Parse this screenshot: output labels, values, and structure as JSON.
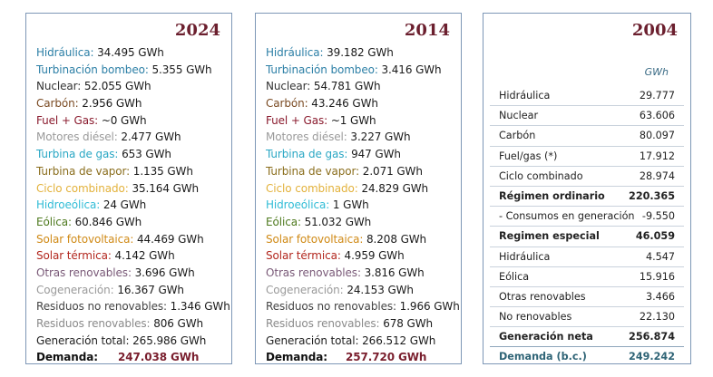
{
  "p2024": {
    "year": "2024",
    "rows": [
      {
        "label": "Hidráulica:",
        "value": " 34.495 GWh",
        "color": "#2c7fa6"
      },
      {
        "label": "Turbinación bombeo:",
        "value": " 5.355 GWh",
        "color": "#2c7fa6"
      },
      {
        "label": "Nuclear:",
        "value": " 52.055 GWh",
        "color": "#333333"
      },
      {
        "label": "Carbón:",
        "value": " 2.956 GWh",
        "color": "#7a4a22"
      },
      {
        "label": "Fuel + Gas:",
        "value": " ~0 GWh",
        "color": "#8a1b2e"
      },
      {
        "label": "Motores diésel:",
        "value": " 2.477 GWh",
        "color": "#9a9a9a"
      },
      {
        "label": "Turbina de gas:",
        "value": " 653 GWh",
        "color": "#2aa7c4"
      },
      {
        "label": "Turbina de vapor:",
        "value": " 1.135 GWh",
        "color": "#8a6d1c"
      },
      {
        "label": "Ciclo combinado:",
        "value": " 35.164 GWh",
        "color": "#e3b23c"
      },
      {
        "label": "Hidroeólica:",
        "value": " 24 GWh",
        "color": "#30bcd6"
      },
      {
        "label": "Eólica:",
        "value": " 60.846 GWh",
        "color": "#4f7a1f"
      },
      {
        "label": "Solar fotovoltaica:",
        "value": " 44.469 GWh",
        "color": "#d08a16"
      },
      {
        "label": "Solar térmica:",
        "value": " 4.142 GWh",
        "color": "#b3281f"
      },
      {
        "label": "Otras renovables:",
        "value": " 3.696 GWh",
        "color": "#7a5a78"
      },
      {
        "label": "Cogeneración:",
        "value": " 16.367 GWh",
        "color": "#9a9a9a"
      },
      {
        "label": "Residuos no renovables:",
        "value": " 1.346 GWh",
        "color": "#444444"
      },
      {
        "label": "Residuos renovables:",
        "value": " 806 GWh",
        "color": "#8a8a8a"
      },
      {
        "label": "Generación total:",
        "value": " 265.986 GWh",
        "color": "#222222"
      }
    ],
    "demand_label": "Demanda:",
    "demand_value": "247.038 GWh"
  },
  "p2014": {
    "year": "2014",
    "rows": [
      {
        "label": "Hidráulica:",
        "value": " 39.182 GWh",
        "color": "#2c7fa6"
      },
      {
        "label": "Turbinación bombeo:",
        "value": " 3.416 GWh",
        "color": "#2c7fa6"
      },
      {
        "label": "Nuclear:",
        "value": " 54.781 GWh",
        "color": "#333333"
      },
      {
        "label": "Carbón:",
        "value": " 43.246 GWh",
        "color": "#7a4a22"
      },
      {
        "label": "Fuel + Gas:",
        "value": " ~1 GWh",
        "color": "#8a1b2e"
      },
      {
        "label": "Motores diésel:",
        "value": " 3.227 GWh",
        "color": "#9a9a9a"
      },
      {
        "label": "Turbina de gas:",
        "value": " 947 GWh",
        "color": "#2aa7c4"
      },
      {
        "label": "Turbina de vapor:",
        "value": " 2.071 GWh",
        "color": "#8a6d1c"
      },
      {
        "label": "Ciclo combinado:",
        "value": " 24.829 GWh",
        "color": "#e3b23c"
      },
      {
        "label": "Hidroeólica:",
        "value": " 1 GWh",
        "color": "#30bcd6"
      },
      {
        "label": "Eólica:",
        "value": " 51.032 GWh",
        "color": "#4f7a1f"
      },
      {
        "label": "Solar fotovoltaica:",
        "value": " 8.208 GWh",
        "color": "#d08a16"
      },
      {
        "label": "Solar térmica:",
        "value": " 4.959 GWh",
        "color": "#b3281f"
      },
      {
        "label": "Otras renovables:",
        "value": " 3.816 GWh",
        "color": "#7a5a78"
      },
      {
        "label": "Cogeneración:",
        "value": " 24.153 GWh",
        "color": "#9a9a9a"
      },
      {
        "label": "Residuos no renovables:",
        "value": " 1.966 GWh",
        "color": "#444444"
      },
      {
        "label": "Residuos renovables:",
        "value": " 678 GWh",
        "color": "#8a8a8a"
      },
      {
        "label": "Generación total:",
        "value": " 266.512 GWh",
        "color": "#222222"
      }
    ],
    "demand_label": "Demanda:",
    "demand_value": "257.720 GWh"
  },
  "p2004": {
    "year": "2004",
    "unit": "GWh",
    "rows": [
      {
        "label": "Hidráulica",
        "value": "29.777",
        "style": ""
      },
      {
        "label": "Nuclear",
        "value": "63.606",
        "style": ""
      },
      {
        "label": "Carbón",
        "value": "80.097",
        "style": ""
      },
      {
        "label": "Fuel/gas (*)",
        "value": "17.912",
        "style": ""
      },
      {
        "label": "Ciclo combinado",
        "value": "28.974",
        "style": ""
      },
      {
        "label": "Régimen ordinario",
        "value": "220.365",
        "style": "b"
      },
      {
        "label": "- Consumos en generación",
        "value": "-9.550",
        "style": ""
      },
      {
        "label": "Regimen especial",
        "value": "46.059",
        "style": "b"
      },
      {
        "label": "Hidráulica",
        "value": "4.547",
        "style": ""
      },
      {
        "label": "Eólica",
        "value": "15.916",
        "style": ""
      },
      {
        "label": "Otras renovables",
        "value": "3.466",
        "style": ""
      },
      {
        "label": "No renovables",
        "value": "22.130",
        "style": ""
      },
      {
        "label": "Generación neta",
        "value": "256.874",
        "style": "b neta"
      },
      {
        "label": "Demanda (b.c.)",
        "value": "249.242",
        "style": "b last"
      }
    ]
  }
}
